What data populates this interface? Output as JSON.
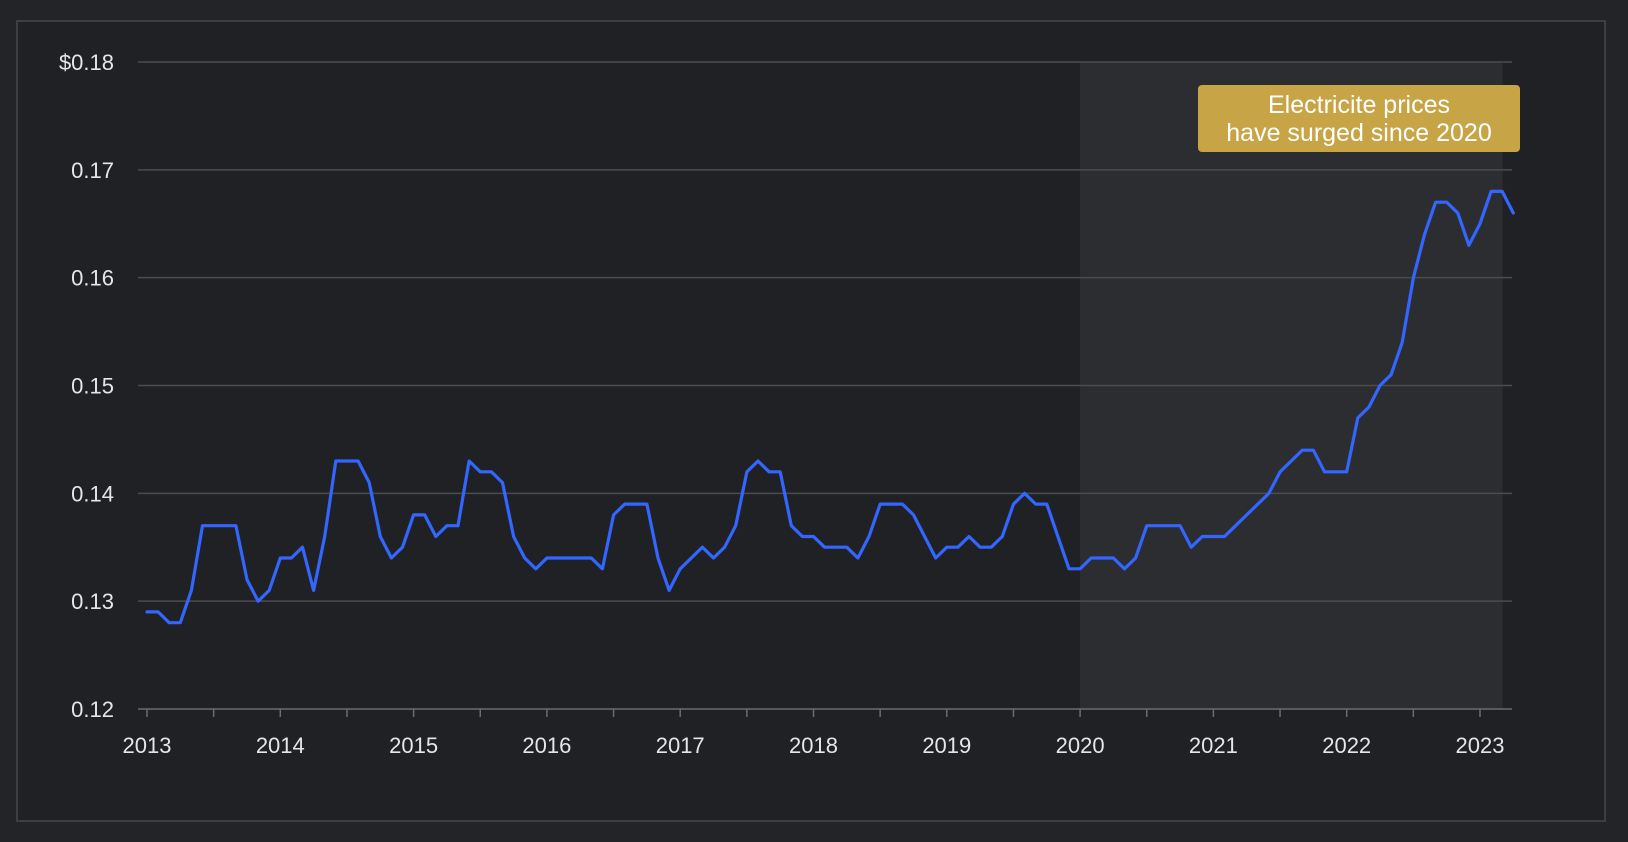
{
  "chart_data": {
    "type": "line",
    "title": "",
    "xlabel": "",
    "ylabel": "",
    "y_tick_labels": [
      "0.12",
      "0.13",
      "0.14",
      "0.15",
      "0.16",
      "0.17",
      "$0.18"
    ],
    "y_ticks": [
      0.12,
      0.13,
      0.14,
      0.15,
      0.16,
      0.17,
      0.18
    ],
    "ylim": [
      0.12,
      0.18
    ],
    "x_tick_labels": [
      "2013",
      "2014",
      "2015",
      "2016",
      "2017",
      "2018",
      "2019",
      "2020",
      "2021",
      "2022",
      "2023"
    ],
    "x_ticks": [
      2013,
      2014,
      2015,
      2016,
      2017,
      2018,
      2019,
      2020,
      2021,
      2022,
      2023
    ],
    "xlim": [
      2013,
      2023.25
    ],
    "grid": true,
    "highlight_region": {
      "x_start": 2020,
      "x_end": 2023.17,
      "color": "#2c2d31"
    },
    "annotation": {
      "lines": [
        "Electricite prices",
        "have surged since 2020"
      ],
      "color": "#c7a445"
    },
    "series": [
      {
        "color": "#3366ff",
        "start": "2013-01",
        "frequency": "monthly",
        "values": [
          0.129,
          0.129,
          0.128,
          0.128,
          0.131,
          0.137,
          0.137,
          0.137,
          0.137,
          0.132,
          0.13,
          0.131,
          0.134,
          0.134,
          0.135,
          0.131,
          0.136,
          0.143,
          0.143,
          0.143,
          0.141,
          0.136,
          0.134,
          0.135,
          0.138,
          0.138,
          0.136,
          0.137,
          0.137,
          0.143,
          0.142,
          0.142,
          0.141,
          0.136,
          0.134,
          0.133,
          0.134,
          0.134,
          0.134,
          0.134,
          0.134,
          0.133,
          0.138,
          0.139,
          0.139,
          0.139,
          0.134,
          0.131,
          0.133,
          0.134,
          0.135,
          0.134,
          0.135,
          0.137,
          0.142,
          0.143,
          0.142,
          0.142,
          0.137,
          0.136,
          0.136,
          0.135,
          0.135,
          0.135,
          0.134,
          0.136,
          0.139,
          0.139,
          0.139,
          0.138,
          0.136,
          0.134,
          0.135,
          0.135,
          0.136,
          0.135,
          0.135,
          0.136,
          0.139,
          0.14,
          0.139,
          0.139,
          0.136,
          0.133,
          0.133,
          0.134,
          0.134,
          0.134,
          0.133,
          0.134,
          0.137,
          0.137,
          0.137,
          0.137,
          0.135,
          0.136,
          0.136,
          0.136,
          0.137,
          0.138,
          0.139,
          0.14,
          0.142,
          0.143,
          0.144,
          0.144,
          0.142,
          0.142,
          0.142,
          0.147,
          0.148,
          0.15,
          0.151,
          0.154,
          0.16,
          0.164,
          0.167,
          0.167,
          0.166,
          0.163,
          0.165,
          0.168,
          0.168,
          0.166
        ]
      }
    ]
  }
}
